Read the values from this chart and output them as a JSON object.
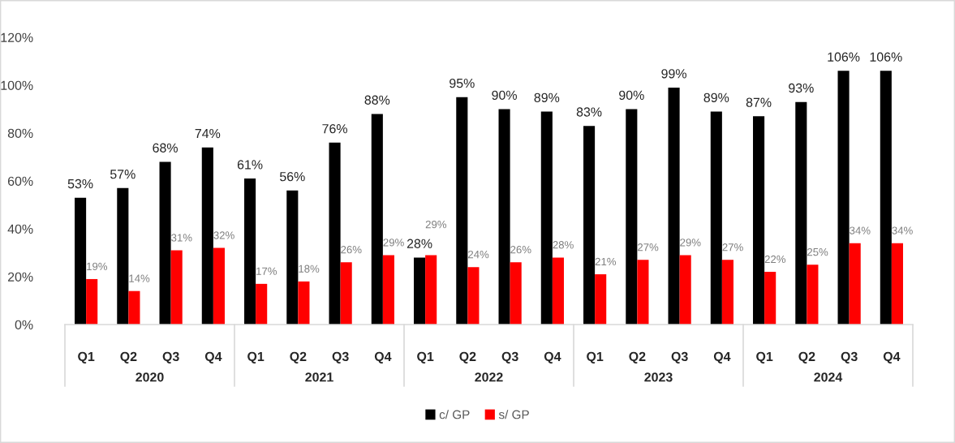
{
  "chart_data": {
    "type": "bar",
    "categories": [
      "Q1",
      "Q2",
      "Q3",
      "Q4",
      "Q1",
      "Q2",
      "Q3",
      "Q4",
      "Q1",
      "Q2",
      "Q3",
      "Q4",
      "Q1",
      "Q2",
      "Q3",
      "Q4",
      "Q1",
      "Q2",
      "Q3",
      "Q4"
    ],
    "annotations": [
      "2020",
      "2021",
      "2022",
      "2023",
      "2024"
    ],
    "series": [
      {
        "name": "c/ GP",
        "color": "#000000",
        "values": [
          53,
          57,
          68,
          74,
          61,
          56,
          76,
          88,
          28,
          95,
          90,
          89,
          83,
          90,
          99,
          89,
          87,
          93,
          106,
          106
        ],
        "value_labels": [
          "53%",
          "57%",
          "68%",
          "74%",
          "61%",
          "56%",
          "76%",
          "88%",
          "28%",
          "95%",
          "90%",
          "89%",
          "83%",
          "90%",
          "99%",
          "89%",
          "87%",
          "93%",
          "106%",
          "106%"
        ]
      },
      {
        "name": "s/ GP",
        "color": "#ff0000",
        "values": [
          19,
          14,
          31,
          32,
          17,
          18,
          26,
          29,
          29,
          24,
          26,
          28,
          21,
          27,
          29,
          27,
          22,
          25,
          34,
          34
        ],
        "value_labels": [
          "19%",
          "14%",
          "31%",
          "32%",
          "17%",
          "18%",
          "26%",
          "29%",
          "29%",
          "24%",
          "26%",
          "28%",
          "21%",
          "27%",
          "29%",
          "27%",
          "22%",
          "25%",
          "34%",
          "34%"
        ]
      }
    ],
    "ylim": [
      0,
      120
    ],
    "yticks": [
      {
        "value": 0,
        "label": "0%"
      },
      {
        "value": 20,
        "label": "20%"
      },
      {
        "value": 40,
        "label": "40%"
      },
      {
        "value": 60,
        "label": "60%"
      },
      {
        "value": 80,
        "label": "80%"
      },
      {
        "value": 100,
        "label": "100%"
      },
      {
        "value": 120,
        "label": "120%"
      }
    ],
    "legend": "bottom"
  }
}
